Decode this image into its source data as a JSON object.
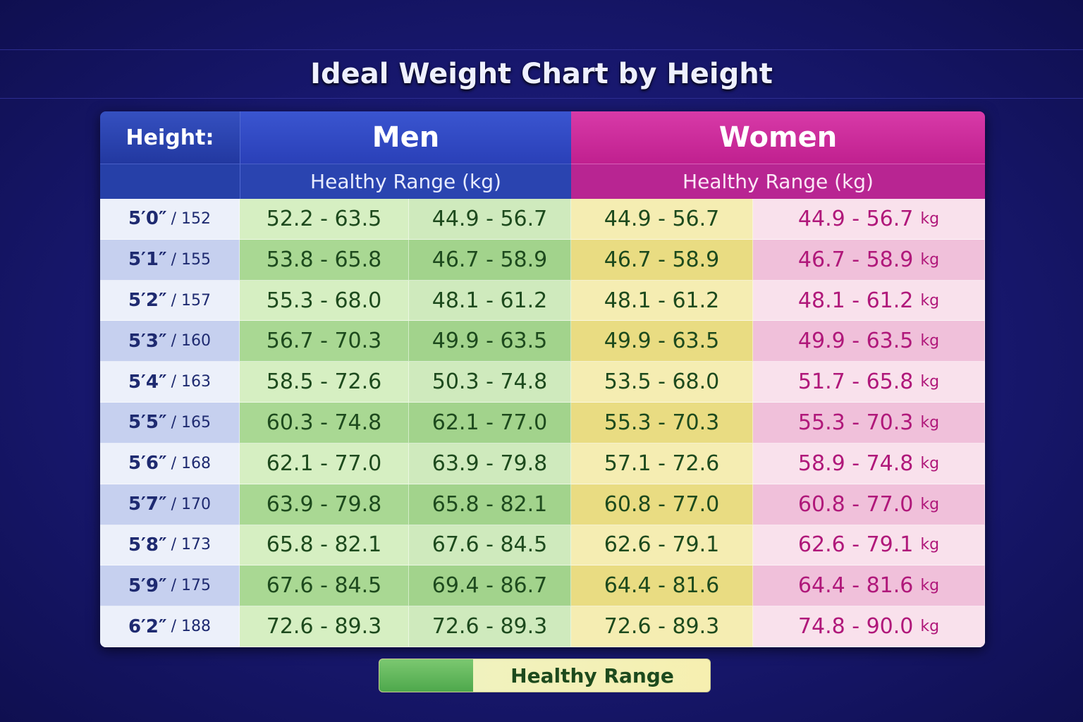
{
  "title": "Ideal Weight Chart by Height",
  "table": {
    "header": {
      "height": "Height:",
      "men": "Men",
      "women": "Women",
      "men_sub": "Healthy Range (kg)",
      "women_sub": "Healthy Range (kg)"
    },
    "unit": "kg",
    "rows": [
      [
        "5′0″",
        "/ 152",
        "52.2 - 63.5",
        "44.9 - 56.7",
        "44.9 - 56.7",
        "44.9 - 56.7"
      ],
      [
        "5′1″",
        "/ 155",
        "53.8 - 65.8",
        "46.7 - 58.9",
        "46.7 - 58.9",
        "46.7 - 58.9"
      ],
      [
        "5′2″",
        "/ 157",
        "55.3 - 68.0",
        "48.1 - 61.2",
        "48.1 - 61.2",
        "48.1 - 61.2"
      ],
      [
        "5′3″",
        "/ 160",
        "56.7 - 70.3",
        "49.9 - 63.5",
        "49.9 - 63.5",
        "49.9 - 63.5"
      ],
      [
        "5′4″",
        "/ 163",
        "58.5 - 72.6",
        "50.3 - 74.8",
        "53.5 - 68.0",
        "51.7 - 65.8"
      ],
      [
        "5′5″",
        "/ 165",
        "60.3 - 74.8",
        "62.1 - 77.0",
        "55.3 - 70.3",
        "55.3 - 70.3"
      ],
      [
        "5′6″",
        "/ 168",
        "62.1 - 77.0",
        "63.9 - 79.8",
        "57.1 - 72.6",
        "58.9 - 74.8"
      ],
      [
        "5′7″",
        "/ 170",
        "63.9 - 79.8",
        "65.8 - 82.1",
        "60.8 - 77.0",
        "60.8 - 77.0"
      ],
      [
        "5′8″",
        "/ 173",
        "65.8 - 82.1",
        "67.6 - 84.5",
        "62.6 - 79.1",
        "62.6 - 79.1"
      ],
      [
        "5′9″",
        "/ 175",
        "67.6 - 84.5",
        "69.4 - 86.7",
        "64.4 - 81.6",
        "64.4 - 81.6"
      ],
      [
        "6′2″",
        "/ 188",
        "72.6 - 89.3",
        "72.6 - 89.3",
        "72.6 - 89.3",
        "74.8 - 90.0"
      ]
    ]
  },
  "legend": {
    "label": "Healthy Range"
  }
}
